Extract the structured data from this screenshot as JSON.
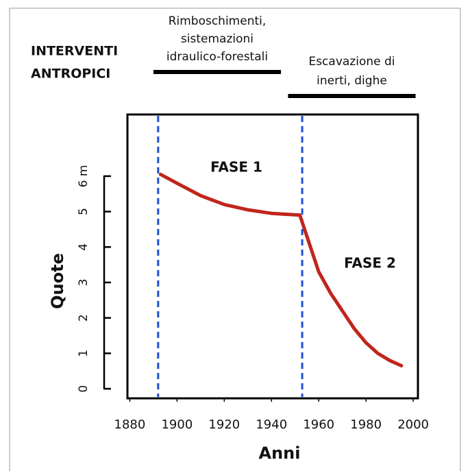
{
  "chart_data": {
    "type": "line",
    "header": [
      "INTERVENTI",
      "ANTROPICI"
    ],
    "periods": [
      {
        "label": [
          "Rimboschimenti,",
          "sistemazioni",
          "idraulico-forestali"
        ],
        "start": 1890,
        "end": 1944
      },
      {
        "label": [
          "Escavazione di",
          "inerti, dighe"
        ],
        "start": 1947,
        "end": 2001
      }
    ],
    "annotations": [
      "FASE 1",
      "FASE 2"
    ],
    "vlines": [
      1892,
      1953
    ],
    "vline_color": "#1f4fd1",
    "x": [
      1893,
      1900,
      1910,
      1920,
      1930,
      1940,
      1952,
      1955,
      1960,
      1965,
      1970,
      1975,
      1980,
      1985,
      1990,
      1995
    ],
    "series": [
      {
        "color": "#c0261b",
        "values": [
          6.05,
          5.8,
          5.45,
          5.2,
          5.05,
          4.95,
          4.9,
          4.3,
          3.3,
          2.7,
          2.2,
          1.7,
          1.3,
          1.0,
          0.8,
          0.65
        ]
      }
    ],
    "xlabel": "Anni",
    "ylabel": "Quote",
    "xlim": [
      1879,
      2002
    ],
    "ylim": [
      -0.27,
      7.74
    ],
    "xticks": [
      1880,
      1900,
      1920,
      1940,
      1960,
      1980,
      2000
    ],
    "yticks": [
      0,
      1,
      2,
      3,
      4,
      5,
      {
        "value": 6,
        "label": "6 m"
      }
    ]
  }
}
